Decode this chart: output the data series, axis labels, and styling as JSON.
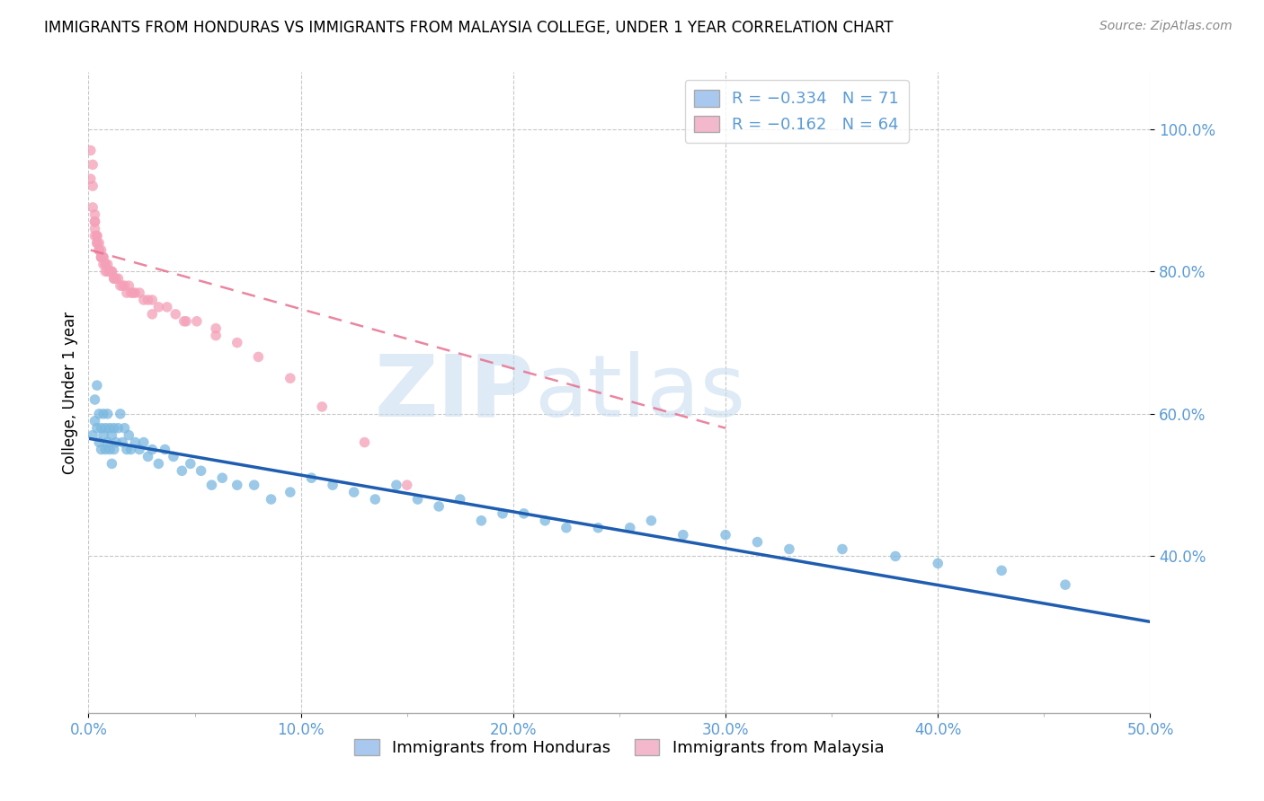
{
  "title": "IMMIGRANTS FROM HONDURAS VS IMMIGRANTS FROM MALAYSIA COLLEGE, UNDER 1 YEAR CORRELATION CHART",
  "source": "Source: ZipAtlas.com",
  "ylabel": "College, Under 1 year",
  "xlim": [
    0.0,
    0.5
  ],
  "ylim": [
    0.18,
    1.08
  ],
  "ytick_positions": [
    0.4,
    0.6,
    0.8,
    1.0
  ],
  "ytick_labels": [
    "40.0%",
    "60.0%",
    "80.0%",
    "100.0%"
  ],
  "xtick_positions": [
    0.0,
    0.1,
    0.2,
    0.3,
    0.4,
    0.5
  ],
  "xtick_labels": [
    "0.0%",
    "10.0%",
    "20.0%",
    "30.0%",
    "40.0%",
    "50.0%"
  ],
  "legend_color_1": "#a8c8f0",
  "legend_color_2": "#f4b8cc",
  "legend_text_1": "R = −0.334   N = 71",
  "legend_text_2": "R = −0.162   N = 64",
  "honduras_color": "#7ab8e0",
  "malaysia_color": "#f4a0b8",
  "trendline_honduras_color": "#1f5db0",
  "trendline_malaysia_color": "#e87090",
  "watermark_zip": "ZIP",
  "watermark_atlas": "atlas",
  "background_color": "#ffffff",
  "grid_color": "#c8c8c8",
  "tick_color": "#5b9bd5",
  "source_color": "#888888",
  "bottom_legend_label_1": "Immigrants from Honduras",
  "bottom_legend_label_2": "Immigrants from Malaysia",
  "honduras_x": [
    0.002,
    0.003,
    0.003,
    0.004,
    0.004,
    0.005,
    0.005,
    0.006,
    0.006,
    0.007,
    0.007,
    0.008,
    0.008,
    0.009,
    0.009,
    0.01,
    0.01,
    0.011,
    0.011,
    0.012,
    0.012,
    0.013,
    0.014,
    0.015,
    0.016,
    0.017,
    0.018,
    0.019,
    0.02,
    0.022,
    0.024,
    0.026,
    0.028,
    0.03,
    0.033,
    0.036,
    0.04,
    0.044,
    0.048,
    0.053,
    0.058,
    0.063,
    0.07,
    0.078,
    0.086,
    0.095,
    0.105,
    0.115,
    0.125,
    0.135,
    0.145,
    0.155,
    0.165,
    0.175,
    0.185,
    0.195,
    0.205,
    0.215,
    0.225,
    0.24,
    0.255,
    0.265,
    0.28,
    0.3,
    0.315,
    0.33,
    0.355,
    0.38,
    0.4,
    0.43,
    0.46
  ],
  "honduras_y": [
    0.57,
    0.59,
    0.62,
    0.58,
    0.64,
    0.56,
    0.6,
    0.58,
    0.55,
    0.57,
    0.6,
    0.55,
    0.58,
    0.56,
    0.6,
    0.58,
    0.55,
    0.57,
    0.53,
    0.55,
    0.58,
    0.56,
    0.58,
    0.6,
    0.56,
    0.58,
    0.55,
    0.57,
    0.55,
    0.56,
    0.55,
    0.56,
    0.54,
    0.55,
    0.53,
    0.55,
    0.54,
    0.52,
    0.53,
    0.52,
    0.5,
    0.51,
    0.5,
    0.5,
    0.48,
    0.49,
    0.51,
    0.5,
    0.49,
    0.48,
    0.5,
    0.48,
    0.47,
    0.48,
    0.45,
    0.46,
    0.46,
    0.45,
    0.44,
    0.44,
    0.44,
    0.45,
    0.43,
    0.43,
    0.42,
    0.41,
    0.41,
    0.4,
    0.39,
    0.38,
    0.36
  ],
  "malaysia_x": [
    0.001,
    0.001,
    0.002,
    0.002,
    0.002,
    0.003,
    0.003,
    0.003,
    0.003,
    0.003,
    0.004,
    0.004,
    0.004,
    0.004,
    0.005,
    0.005,
    0.005,
    0.006,
    0.006,
    0.006,
    0.006,
    0.007,
    0.007,
    0.007,
    0.008,
    0.008,
    0.008,
    0.009,
    0.009,
    0.01,
    0.01,
    0.011,
    0.011,
    0.012,
    0.012,
    0.013,
    0.014,
    0.015,
    0.016,
    0.017,
    0.018,
    0.019,
    0.02,
    0.021,
    0.022,
    0.024,
    0.026,
    0.028,
    0.03,
    0.033,
    0.037,
    0.041,
    0.046,
    0.051,
    0.06,
    0.07,
    0.08,
    0.095,
    0.11,
    0.13,
    0.15,
    0.03,
    0.045,
    0.06
  ],
  "malaysia_y": [
    0.97,
    0.93,
    0.95,
    0.92,
    0.89,
    0.88,
    0.87,
    0.86,
    0.85,
    0.87,
    0.85,
    0.85,
    0.84,
    0.84,
    0.84,
    0.83,
    0.83,
    0.83,
    0.82,
    0.82,
    0.82,
    0.82,
    0.81,
    0.82,
    0.81,
    0.81,
    0.8,
    0.81,
    0.8,
    0.8,
    0.8,
    0.8,
    0.8,
    0.79,
    0.79,
    0.79,
    0.79,
    0.78,
    0.78,
    0.78,
    0.77,
    0.78,
    0.77,
    0.77,
    0.77,
    0.77,
    0.76,
    0.76,
    0.76,
    0.75,
    0.75,
    0.74,
    0.73,
    0.73,
    0.72,
    0.7,
    0.68,
    0.65,
    0.61,
    0.56,
    0.5,
    0.74,
    0.73,
    0.71
  ],
  "trendline_hond_x0": 0.001,
  "trendline_hond_x1": 0.5,
  "trendline_hond_y0": 0.565,
  "trendline_hond_y1": 0.308,
  "trendline_malay_x0": 0.001,
  "trendline_malay_x1": 0.3,
  "trendline_malay_y0": 0.83,
  "trendline_malay_y1": 0.58
}
